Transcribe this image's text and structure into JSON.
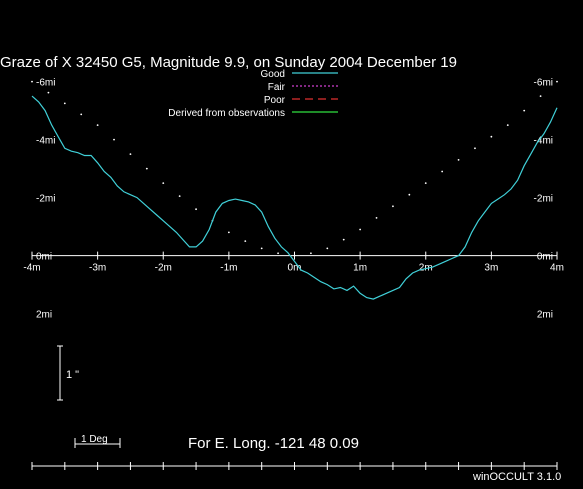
{
  "chart_data": {
    "type": "line",
    "title": "Graze of  X 32450   G5,  Magnitude   9.9,  on Sunday  2004  December  19",
    "x_axis": {
      "range": [
        -4,
        4
      ],
      "ticks": [
        {
          "value": -4,
          "label": "-4m"
        },
        {
          "value": -3,
          "label": "-3m"
        },
        {
          "value": -2,
          "label": "-2m"
        },
        {
          "value": -1,
          "label": "-1m"
        },
        {
          "value": 0,
          "label": "0m"
        },
        {
          "value": 1,
          "label": "1m"
        },
        {
          "value": 2,
          "label": "2m"
        },
        {
          "value": 3,
          "label": "3m"
        },
        {
          "value": 4,
          "label": "4m"
        }
      ]
    },
    "y_axis": {
      "range": [
        -2.6,
        7.4
      ],
      "ticks": [
        {
          "value": 6,
          "label": "-6mi"
        },
        {
          "value": 4,
          "label": "-4mi"
        },
        {
          "value": 2,
          "label": "-2mi"
        },
        {
          "value": 0,
          "label": "0mi"
        },
        {
          "value": -2,
          "label": "2mi"
        }
      ]
    },
    "legend": {
      "placement": "top-center",
      "entries": [
        {
          "label": "Good",
          "color": "#40d0d8",
          "style": "solid"
        },
        {
          "label": "Fair",
          "color": "#d040d0",
          "style": "dotted"
        },
        {
          "label": "Poor",
          "color": "#e03030",
          "style": "dashed"
        },
        {
          "label": "Derived from observations",
          "color": "#30e040",
          "style": "solid"
        }
      ]
    },
    "series": [
      {
        "style": "Good",
        "color": "#40d0d8",
        "x": [
          -4.0,
          -3.9,
          -3.8,
          -3.7,
          -3.6,
          -3.5,
          -3.4,
          -3.3,
          -3.2,
          -3.1,
          -3.0,
          -2.9,
          -2.8,
          -2.7,
          -2.6,
          -2.5,
          -2.4,
          -2.3,
          -2.2,
          -2.1,
          -2.0,
          -1.9,
          -1.8,
          -1.7,
          -1.6,
          -1.5,
          -1.4,
          -1.3,
          -1.2,
          -1.1,
          -1.0,
          -0.9,
          -0.8,
          -0.7,
          -0.6,
          -0.5,
          -0.4,
          -0.3,
          -0.2,
          -0.1,
          0.0,
          0.1,
          0.2,
          0.3,
          0.4,
          0.5,
          0.6,
          0.7,
          0.8,
          0.9,
          1.0,
          1.1,
          1.2,
          1.3,
          1.4,
          1.5,
          1.6,
          1.7,
          1.8,
          1.9,
          2.0,
          2.1,
          2.2,
          2.3,
          2.4,
          2.5,
          2.6,
          2.7,
          2.8,
          2.9,
          3.0,
          3.1,
          3.2,
          3.3,
          3.4,
          3.5,
          3.6,
          3.7,
          3.8,
          3.9,
          4.0
        ],
        "y": [
          5.5,
          5.3,
          5.0,
          4.5,
          4.1,
          3.7,
          3.6,
          3.55,
          3.45,
          3.45,
          3.2,
          2.9,
          2.7,
          2.4,
          2.2,
          2.1,
          2.0,
          1.8,
          1.6,
          1.4,
          1.2,
          1.0,
          0.8,
          0.55,
          0.3,
          0.3,
          0.5,
          0.9,
          1.5,
          1.8,
          1.9,
          1.95,
          1.9,
          1.85,
          1.75,
          1.5,
          1.0,
          0.6,
          0.3,
          0.1,
          -0.2,
          -0.5,
          -0.6,
          -0.75,
          -0.9,
          -1.0,
          -1.15,
          -1.1,
          -1.2,
          -1.05,
          -1.3,
          -1.45,
          -1.5,
          -1.4,
          -1.3,
          -1.2,
          -1.1,
          -0.8,
          -0.6,
          -0.5,
          -0.45,
          -0.4,
          -0.3,
          -0.2,
          -0.1,
          0.0,
          0.3,
          0.8,
          1.2,
          1.5,
          1.8,
          1.95,
          2.1,
          2.3,
          2.6,
          3.1,
          3.5,
          3.9,
          4.2,
          4.6,
          5.1
        ]
      }
    ],
    "limb_dots": {
      "x": [
        -4.0,
        -3.75,
        -3.5,
        -3.25,
        -3.0,
        -2.75,
        -2.5,
        -2.25,
        -2.0,
        -1.75,
        -1.5,
        -1.25,
        -1.0,
        -0.75,
        -0.5,
        -0.25,
        0.0,
        0.25,
        0.5,
        0.75,
        1.0,
        1.25,
        1.5,
        1.75,
        2.0,
        2.25,
        2.5,
        2.75,
        3.0,
        3.25,
        3.5,
        3.75,
        4.0
      ],
      "y": [
        6.0,
        5.62,
        5.25,
        4.87,
        4.5,
        4.0,
        3.5,
        3.0,
        2.5,
        2.05,
        1.6,
        1.2,
        0.8,
        0.5,
        0.25,
        0.08,
        0.0,
        0.08,
        0.25,
        0.55,
        0.9,
        1.3,
        1.7,
        2.1,
        2.5,
        2.9,
        3.3,
        3.7,
        4.1,
        4.5,
        5.0,
        5.5,
        6.0
      ]
    },
    "scale_bar_label": "1 \"",
    "degree_bar_label": "1 Deg",
    "longitude_label": "For E. Long. -121 48  0.09",
    "software_label": "winOCCULT 3.1.0"
  }
}
